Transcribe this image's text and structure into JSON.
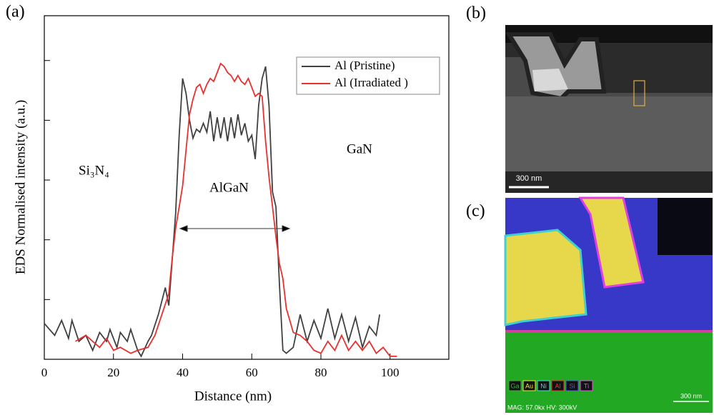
{
  "chart_data": {
    "type": "line",
    "title_label": "(a)",
    "xlabel": "Distance (nm)",
    "ylabel": "EDS Normalised intensity (a.u.)",
    "xlim": [
      0,
      117
    ],
    "xticks": [
      0,
      20,
      40,
      60,
      80,
      100
    ],
    "ylim": [
      0,
      1.15
    ],
    "yticks": [
      0.2,
      0.4,
      0.6,
      0.8,
      1.0
    ],
    "legend": "upper right",
    "annotations": [
      "Si₃N₄",
      "AlGaN",
      "GaN"
    ],
    "series": [
      {
        "name": "Al (Pristine)",
        "color": "#404040",
        "x": [
          0,
          3,
          5,
          7,
          8,
          10,
          12,
          14,
          16,
          18,
          19,
          21,
          22,
          24,
          25,
          27,
          28,
          30,
          31,
          33,
          35,
          36,
          38,
          39,
          40,
          41,
          42,
          43,
          44,
          45,
          46,
          47,
          48,
          49,
          50,
          51,
          52,
          53,
          54,
          55,
          56,
          57,
          58,
          59,
          60,
          61,
          62,
          63,
          64,
          65,
          66,
          67,
          68,
          69,
          70,
          72,
          74,
          76,
          78,
          80,
          82,
          84,
          86,
          88,
          90,
          92,
          94,
          96,
          97
        ],
        "values": [
          0.12,
          0.08,
          0.13,
          0.07,
          0.13,
          0.06,
          0.08,
          0.03,
          0.09,
          0.06,
          0.1,
          0.04,
          0.09,
          0.06,
          0.1,
          0.03,
          0.01,
          0.06,
          0.08,
          0.15,
          0.24,
          0.18,
          0.49,
          0.75,
          0.94,
          0.89,
          0.8,
          0.74,
          0.77,
          0.76,
          0.79,
          0.76,
          0.83,
          0.73,
          0.81,
          0.74,
          0.81,
          0.73,
          0.81,
          0.74,
          0.82,
          0.75,
          0.79,
          0.73,
          0.75,
          0.67,
          0.85,
          0.94,
          0.98,
          0.85,
          0.56,
          0.51,
          0.25,
          0.03,
          0.02,
          0.04,
          0.15,
          0.06,
          0.13,
          0.07,
          0.17,
          0.07,
          0.15,
          0.06,
          0.14,
          0.04,
          0.11,
          0.08,
          0.15
        ]
      },
      {
        "name": "Al (Irradiated )",
        "color": "#e8302f",
        "x": [
          9,
          12,
          14,
          16,
          18,
          20,
          22,
          25,
          27,
          30,
          32,
          34,
          36,
          37,
          38,
          39,
          40,
          41,
          42,
          43,
          44,
          45,
          46,
          47,
          48,
          49,
          50,
          51,
          52,
          53,
          54,
          55,
          56,
          57,
          58,
          59,
          60,
          61,
          62,
          63,
          64,
          65,
          66,
          67,
          68,
          69,
          70,
          71,
          72,
          74,
          76,
          78,
          80,
          82,
          84,
          86,
          88,
          90,
          92,
          94,
          96,
          98,
          100,
          102
        ],
        "values": [
          0.06,
          0.08,
          0.06,
          0.04,
          0.07,
          0.03,
          0.04,
          0.02,
          0.03,
          0.04,
          0.08,
          0.15,
          0.22,
          0.34,
          0.44,
          0.51,
          0.58,
          0.7,
          0.82,
          0.87,
          0.91,
          0.92,
          0.89,
          0.92,
          0.94,
          0.93,
          0.96,
          0.99,
          0.98,
          0.96,
          0.95,
          0.93,
          0.95,
          0.93,
          0.92,
          0.94,
          0.91,
          0.88,
          0.89,
          0.88,
          0.73,
          0.61,
          0.51,
          0.41,
          0.32,
          0.27,
          0.17,
          0.13,
          0.09,
          0.08,
          0.06,
          0.03,
          0.02,
          0.06,
          0.03,
          0.08,
          0.03,
          0.06,
          0.03,
          0.06,
          0.02,
          0.04,
          0.01,
          0.01
        ]
      }
    ]
  },
  "panels": {
    "b": {
      "label": "(b)",
      "scale_bar": "300 nm"
    },
    "c": {
      "label": "(c)",
      "scale_bar": "300 nm",
      "elements": [
        "Ga",
        "Au",
        "Ni",
        "Al",
        "Si",
        "Ti"
      ],
      "info": "MAG: 57.0kx  HV: 300kV"
    }
  }
}
